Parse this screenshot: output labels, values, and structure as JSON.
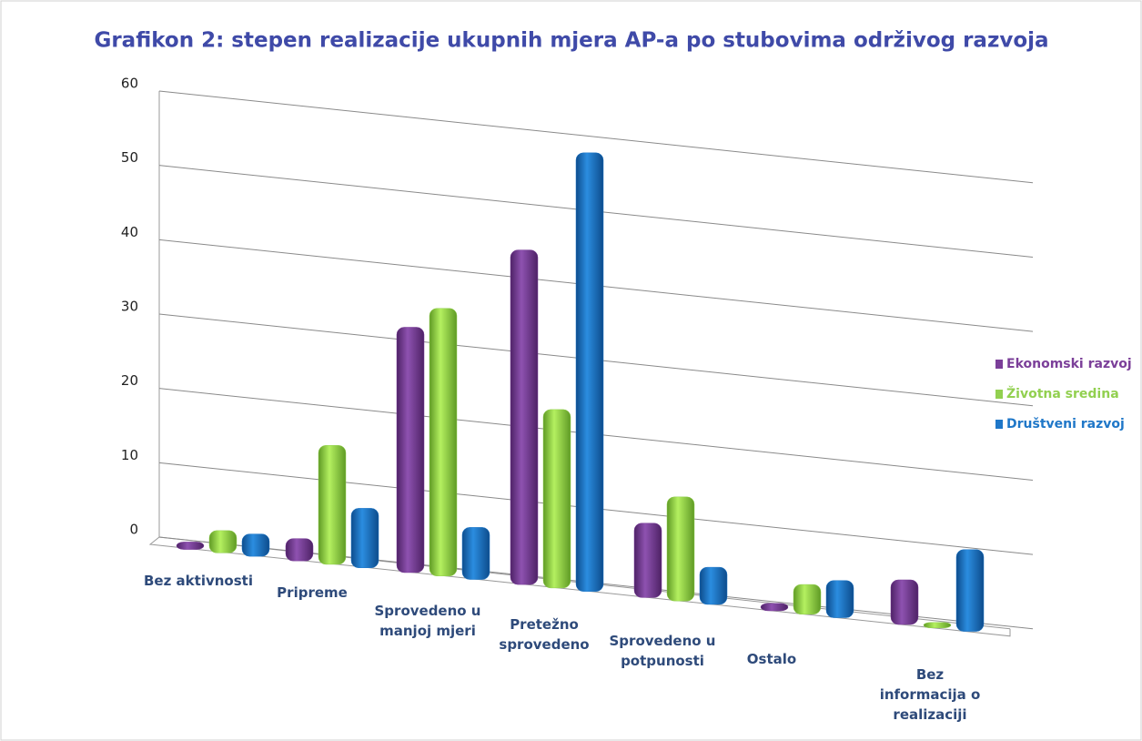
{
  "chart_data": {
    "type": "bar",
    "title": "Grafikon 2: stepen realizacije ukupnih mjera AP-a po stubovima održivog razvoja",
    "categories": [
      "Bez aktivnosti",
      "Pripreme",
      "Sprovedeno u manjoj mjeri",
      "Pretežno sprovedeno",
      "Sprovedeno u potpunosti",
      "Ostalo",
      "Bez informacija o realizaciji"
    ],
    "series": [
      {
        "name": "Ekonomski razvoj",
        "color": "#7b3f99",
        "values": [
          1,
          3,
          33,
          45,
          10,
          1,
          6
        ]
      },
      {
        "name": "Životna sredina",
        "color": "#92d050",
        "values": [
          3,
          16,
          36,
          24,
          14,
          4,
          0
        ]
      },
      {
        "name": "Društveni razvoj",
        "color": "#1f77c8",
        "values": [
          3,
          8,
          7,
          59,
          5,
          5,
          11
        ]
      }
    ],
    "ylim": [
      0,
      60
    ],
    "yticks": [
      0,
      10,
      20,
      30,
      40,
      50,
      60
    ],
    "grid": true,
    "legend": "right"
  }
}
